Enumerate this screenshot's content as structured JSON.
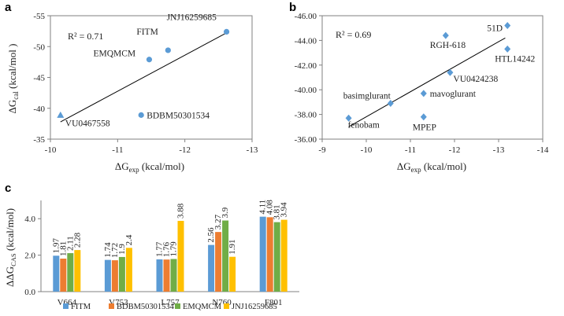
{
  "colors": {
    "scatter": "#5B9BD5",
    "FITM": "#5B9BD5",
    "BDBM50301534": "#ED7D31",
    "EMQMCM": "#70AD47",
    "JNJ16259685": "#FFC000",
    "axis": "#808080",
    "fit_line": "#000000"
  },
  "chart_data": [
    {
      "panel": "a",
      "type": "scatter",
      "xlabel": "ΔG_exp (kcal/mol)",
      "ylabel": "ΔG_cal (kcal/mol)",
      "xlim": [
        -10,
        -13
      ],
      "ylim": [
        -35,
        -55
      ],
      "xticks": [
        -10,
        -11,
        -12,
        -13
      ],
      "yticks": [
        -35,
        -40,
        -45,
        -50,
        -55
      ],
      "annotation": "R² = 0.71",
      "points": [
        {
          "label": "JNJ16259685",
          "x": -12.62,
          "y": -52.4,
          "marker": "circle"
        },
        {
          "label": "FITM",
          "x": -11.75,
          "y": -49.4,
          "marker": "circle"
        },
        {
          "label": "EMQMCM",
          "x": -11.47,
          "y": -47.9,
          "marker": "circle"
        },
        {
          "label": "BDBM50301534",
          "x": -11.35,
          "y": -38.9,
          "marker": "circle"
        },
        {
          "label": "VU0467558",
          "x": -10.15,
          "y": -38.9,
          "marker": "triangle"
        }
      ],
      "fit_line": {
        "x": [
          -10.15,
          -12.65
        ],
        "y": [
          -37.8,
          -52.4
        ]
      }
    },
    {
      "panel": "b",
      "type": "scatter",
      "xlabel": "ΔG_exp (kcal/mol)",
      "ylabel": "",
      "xlim": [
        -9,
        -14
      ],
      "ylim": [
        -36,
        -46
      ],
      "xticks": [
        -9,
        -10,
        -11,
        -12,
        -13,
        -14
      ],
      "yticks": [
        "-36.00",
        "-38.00",
        "-40.00",
        "-42.00",
        "-44.00",
        "-46.00"
      ],
      "annotation": "R² = 0.69",
      "points": [
        {
          "label": "51D",
          "x": -13.2,
          "y": -45.2,
          "marker": "diamond"
        },
        {
          "label": "RGH-618",
          "x": -11.8,
          "y": -44.4,
          "marker": "diamond"
        },
        {
          "label": "HTL14242",
          "x": -13.2,
          "y": -43.3,
          "marker": "diamond"
        },
        {
          "label": "VU0424238",
          "x": -11.9,
          "y": -41.4,
          "marker": "diamond"
        },
        {
          "label": "mavoglurant",
          "x": -11.3,
          "y": -39.7,
          "marker": "diamond"
        },
        {
          "label": "basimglurant",
          "x": -10.55,
          "y": -38.9,
          "marker": "diamond"
        },
        {
          "label": "fenobam",
          "x": -9.6,
          "y": -37.7,
          "marker": "diamond"
        },
        {
          "label": "MPEP",
          "x": -11.3,
          "y": -37.8,
          "marker": "diamond"
        }
      ],
      "fit_line": {
        "x": [
          -9.6,
          -13.15
        ],
        "y": [
          -37.0,
          -44.2
        ]
      }
    },
    {
      "panel": "c",
      "type": "bar",
      "ylabel": "ΔΔG_CAS (kcal/mol)",
      "ylim": [
        0,
        5
      ],
      "yticks": [
        "0.0",
        "2.0",
        "4.0"
      ],
      "categories": [
        "V664",
        "V753",
        "L757",
        "N760",
        "F801"
      ],
      "series": [
        {
          "name": "FITM",
          "values": [
            1.97,
            1.74,
            1.77,
            2.56,
            4.11
          ]
        },
        {
          "name": "BDBM50301534",
          "values": [
            1.81,
            1.72,
            1.76,
            3.27,
            4.08
          ]
        },
        {
          "name": "EMQMCM",
          "values": [
            2.11,
            1.9,
            1.79,
            3.9,
            3.81
          ]
        },
        {
          "name": "JNJ16259685",
          "values": [
            2.28,
            2.4,
            3.88,
            1.91,
            3.94
          ]
        }
      ],
      "legend": "bottom"
    }
  ]
}
